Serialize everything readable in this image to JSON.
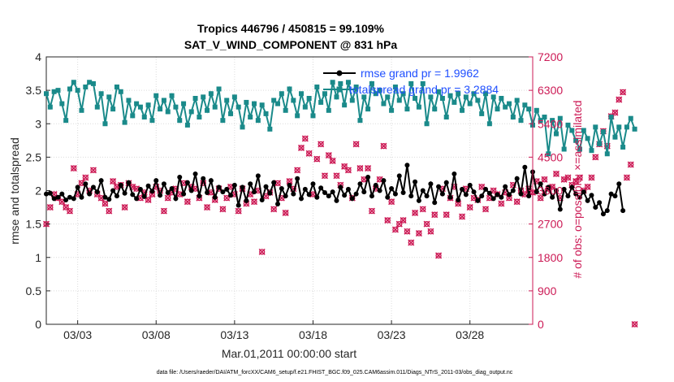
{
  "chart_data": {
    "type": "line",
    "title_line1": "Tropics 446796 / 450815 = 99.109%",
    "title_line2": "SAT_V_WIND_COMPONENT @ 831 hPa",
    "xlabel": "Mar.01,2011 00:00:00 start",
    "ylabel_left": "rmse and totalspread",
    "ylabel_right": "# of obs: o=possible; ×=assimilated",
    "footer": "data file: /Users/raeder/DAI/ATM_forcXX/CAM6_setup/f.e21.FHIST_BGC.f09_025.CAM6assim.011/Diags_NTrS_2011-03/obs_diag_output.nc",
    "xlim": [
      1.0,
      32.0
    ],
    "ylim_left": [
      0,
      4
    ],
    "ylim_right": [
      0,
      7200
    ],
    "x_ticks": [
      {
        "value": 3,
        "label": "03/03"
      },
      {
        "value": 8,
        "label": "03/08"
      },
      {
        "value": 13,
        "label": "03/13"
      },
      {
        "value": 18,
        "label": "03/18"
      },
      {
        "value": 23,
        "label": "03/23"
      },
      {
        "value": 28,
        "label": "03/28"
      }
    ],
    "y_ticks_left": [
      {
        "value": 0,
        "label": "0"
      },
      {
        "value": 0.5,
        "label": "0.5"
      },
      {
        "value": 1,
        "label": "1"
      },
      {
        "value": 1.5,
        "label": "1.5"
      },
      {
        "value": 2,
        "label": "2"
      },
      {
        "value": 2.5,
        "label": "2.5"
      },
      {
        "value": 3,
        "label": "3"
      },
      {
        "value": 3.5,
        "label": "3.5"
      },
      {
        "value": 4,
        "label": "4"
      }
    ],
    "y_ticks_right": [
      {
        "value": 0,
        "label": "0"
      },
      {
        "value": 900,
        "label": "900"
      },
      {
        "value": 1800,
        "label": "1800"
      },
      {
        "value": 2700,
        "label": "2700"
      },
      {
        "value": 3600,
        "label": "3600"
      },
      {
        "value": 4500,
        "label": "4500"
      },
      {
        "value": 5400,
        "label": "5400"
      },
      {
        "value": 6300,
        "label": "6300"
      },
      {
        "value": 7200,
        "label": "7200"
      }
    ],
    "grid": true,
    "legend_position": "top-right",
    "series": [
      {
        "name": "rmse grand pr = 1.9962",
        "axis": "left",
        "color": "#000000",
        "marker": "filled-dot",
        "x_start": 1.0,
        "x_step": 0.25,
        "values": [
          1.95,
          1.96,
          1.88,
          1.9,
          1.95,
          1.86,
          1.9,
          1.88,
          2.05,
          1.9,
          2.1,
          1.95,
          2.05,
          1.98,
          2.15,
          1.9,
          1.87,
          2.0,
          1.92,
          2.08,
          1.96,
          2.12,
          1.94,
          1.88,
          2.02,
          1.91,
          2.07,
          1.99,
          2.15,
          1.93,
          2.1,
          1.97,
          2.03,
          1.88,
          2.2,
          1.95,
          2.12,
          2.0,
          2.25,
          1.92,
          2.18,
          1.97,
          2.15,
          1.9,
          2.05,
          1.98,
          2.02,
          1.93,
          2.08,
          1.78,
          2.05,
          1.85,
          2.1,
          1.98,
          2.22,
          1.86,
          2.06,
          1.96,
          2.12,
          1.8,
          2.03,
          1.92,
          2.08,
          1.95,
          2.18,
          1.88,
          2.02,
          1.94,
          2.1,
          1.9,
          2.04,
          1.97,
          1.92,
          1.98,
          1.85,
          2.05,
          1.93,
          2.02,
          1.88,
          1.95,
          2.1,
          1.98,
          2.2,
          1.92,
          2.08,
          2.0,
          2.15,
          1.9,
          2.03,
          1.95,
          2.22,
          1.97,
          2.38,
          1.92,
          2.13,
          1.85,
          2.0,
          1.92,
          2.1,
          1.82,
          2.06,
          1.95,
          2.12,
          1.9,
          2.25,
          1.86,
          2.02,
          1.94,
          2.08,
          1.98,
          1.85,
          1.92,
          2.02,
          1.96,
          1.88,
          1.94,
          1.9,
          2.06,
          1.94,
          2.0,
          2.18,
          1.95,
          2.35,
          1.92,
          2.28,
          1.98,
          2.1,
          1.95,
          2.05,
          1.9,
          2.0,
          1.72,
          2.02,
          1.92,
          2.05,
          1.95,
          1.9,
          1.98,
          1.85,
          1.93,
          1.75,
          1.82,
          1.65,
          1.7,
          1.95,
          1.92,
          2.1,
          1.7
        ]
      },
      {
        "name": "totalspread grand pr = 3.2884",
        "axis": "left",
        "color": "#1a8a8a",
        "marker": "filled-square",
        "x_start": 1.0,
        "x_step": 0.25,
        "values": [
          3.45,
          3.25,
          3.48,
          3.5,
          3.3,
          3.05,
          3.52,
          3.62,
          3.5,
          3.2,
          3.55,
          3.62,
          3.6,
          3.25,
          3.45,
          3.0,
          3.4,
          3.22,
          3.55,
          3.48,
          3.02,
          3.35,
          3.12,
          3.3,
          3.25,
          3.1,
          3.28,
          3.05,
          3.42,
          3.22,
          3.35,
          3.18,
          3.42,
          3.25,
          3.05,
          3.3,
          2.98,
          3.18,
          3.38,
          3.1,
          3.4,
          3.2,
          3.45,
          3.25,
          3.52,
          3.05,
          3.35,
          3.15,
          3.4,
          3.25,
          2.95,
          3.32,
          3.1,
          3.3,
          3.05,
          3.28,
          3.15,
          2.92,
          3.35,
          3.3,
          3.45,
          3.2,
          3.52,
          3.35,
          3.12,
          3.45,
          3.25,
          3.38,
          3.12,
          3.55,
          3.32,
          3.45,
          3.2,
          3.62,
          3.4,
          3.6,
          3.28,
          3.62,
          3.35,
          3.55,
          3.05,
          3.4,
          3.22,
          3.6,
          3.45,
          3.5,
          3.3,
          3.4,
          3.2,
          3.55,
          3.35,
          3.45,
          3.22,
          3.6,
          3.38,
          3.25,
          3.6,
          3.0,
          3.4,
          3.22,
          3.48,
          3.38,
          3.1,
          3.42,
          3.32,
          3.45,
          3.2,
          3.4,
          3.3,
          3.45,
          3.35,
          3.15,
          3.45,
          3.0,
          3.4,
          3.22,
          3.38,
          3.25,
          3.3,
          3.1,
          3.35,
          3.05,
          3.28,
          3.22,
          2.98,
          3.2,
          3.05,
          3.1,
          2.55,
          3.05,
          2.85,
          3.08,
          2.62,
          2.98,
          2.9,
          2.75,
          2.62,
          2.9,
          2.78,
          2.6,
          2.95,
          2.7,
          2.88,
          2.55,
          3.1,
          2.8,
          2.95,
          2.65,
          2.95,
          3.08,
          2.92
        ]
      },
      {
        "name": "obs possible",
        "axis": "right",
        "color": "#cc1a55",
        "marker": "circle",
        "x_start": 1.0,
        "x_step": 0.25,
        "values": [
          2700,
          3150,
          3500,
          3400,
          3300,
          3150,
          3050,
          4200,
          3500,
          3800,
          3950,
          3600,
          4150,
          3500,
          3400,
          3250,
          3050,
          3850,
          3700,
          3750,
          3150,
          3800,
          3700,
          3650,
          3400,
          3550,
          3350,
          3500,
          3700,
          3600,
          3050,
          3400,
          3550,
          3650,
          3500,
          3800,
          3300,
          3700,
          3650,
          3400,
          3800,
          3150,
          3550,
          3350,
          3650,
          3100,
          3400,
          3700,
          3500,
          3050,
          3650,
          3250,
          3500,
          3300,
          3600,
          1950,
          3450,
          3550,
          3100,
          3800,
          3400,
          3000,
          3850,
          3650,
          4150,
          4750,
          5000,
          4600,
          3500,
          4450,
          4850,
          4000,
          4550,
          4400,
          4000,
          3750,
          4250,
          4150,
          3400,
          4850,
          4200,
          3900,
          4200,
          3050,
          3650,
          3900,
          4800,
          2800,
          3300,
          2550,
          2700,
          2800,
          2500,
          2200,
          3000,
          2450,
          3100,
          2700,
          2500,
          2950,
          1850,
          3650,
          2950,
          3400,
          3700,
          3250,
          2900,
          3650,
          3150,
          3400,
          3350,
          3700,
          3100,
          3400,
          3600,
          3500,
          3250,
          3550,
          3400,
          3750,
          3300,
          3600,
          3500,
          3650,
          3550,
          3850,
          3400,
          3900,
          3650,
          3700,
          4050,
          3400,
          3900,
          3950,
          3750,
          3850,
          3950,
          3600,
          3700,
          3950,
          4500,
          4850,
          5200,
          4800,
          5600,
          5700,
          6050,
          6250,
          3950,
          4300,
          0
        ]
      },
      {
        "name": "obs assimilated",
        "axis": "right",
        "color": "#cc1a55",
        "marker": "cross",
        "x_start": 1.0,
        "x_step": 0.25,
        "values": [
          2700,
          3150,
          3500,
          3400,
          3300,
          3150,
          3050,
          4200,
          3500,
          3800,
          3950,
          3600,
          4150,
          3500,
          3400,
          3250,
          3050,
          3850,
          3700,
          3750,
          3150,
          3800,
          3700,
          3650,
          3400,
          3550,
          3350,
          3500,
          3700,
          3600,
          3050,
          3400,
          3550,
          3650,
          3500,
          3800,
          3300,
          3700,
          3650,
          3400,
          3800,
          3150,
          3550,
          3350,
          3650,
          3100,
          3400,
          3700,
          3500,
          3050,
          3650,
          3250,
          3500,
          3300,
          3600,
          1950,
          3450,
          3550,
          3100,
          3800,
          3400,
          3000,
          3850,
          3650,
          4150,
          4750,
          5000,
          4600,
          3500,
          4450,
          4850,
          4000,
          4550,
          4400,
          4000,
          3750,
          4250,
          4150,
          3400,
          4850,
          4200,
          3900,
          4200,
          3050,
          3650,
          3900,
          4800,
          2800,
          3300,
          2550,
          2700,
          2800,
          2500,
          2200,
          3000,
          2450,
          3100,
          2700,
          2500,
          2950,
          1850,
          3650,
          2950,
          3400,
          3700,
          3250,
          2900,
          3650,
          3150,
          3400,
          3350,
          3700,
          3100,
          3400,
          3600,
          3500,
          3250,
          3550,
          3400,
          3750,
          3300,
          3600,
          3500,
          3650,
          3550,
          3850,
          3400,
          3900,
          3650,
          3700,
          4050,
          3400,
          3900,
          3950,
          3750,
          3850,
          3950,
          3600,
          3700,
          3950,
          4500,
          4850,
          5200,
          4800,
          5600,
          5700,
          6050,
          6250,
          3950,
          4300,
          0
        ]
      }
    ]
  }
}
